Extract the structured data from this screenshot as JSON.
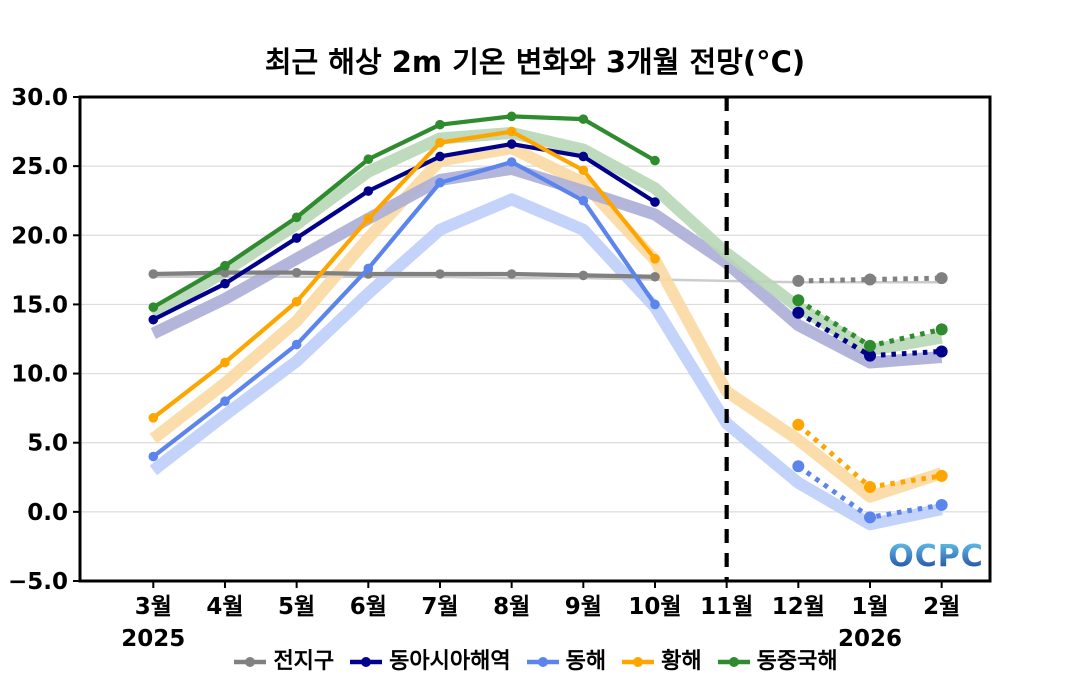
{
  "title": "최근 해상 2m 기온 변화와 3개월 전망(°C)",
  "watermark": "OCPC",
  "chart_data": {
    "type": "line",
    "title": "최근 해상 2m 기온 변화와 3개월 전망(°C)",
    "x_categories": [
      "3월",
      "4월",
      "5월",
      "6월",
      "7월",
      "8월",
      "9월",
      "10월",
      "11월",
      "12월",
      "1월",
      "2월"
    ],
    "year_labels": [
      {
        "text": "2025",
        "month": "3월"
      },
      {
        "text": "2026",
        "month": "1월"
      }
    ],
    "ylim": [
      -5.0,
      30.0
    ],
    "yticks": [
      30,
      25,
      20,
      15,
      10,
      5,
      0,
      -5
    ],
    "ytick_labels": [
      "30.0",
      "25.0",
      "20.0",
      "15.0",
      "10.0",
      "5.0",
      "0.0",
      "−5.0"
    ],
    "grid": "horizontal",
    "legend_position": "bottom",
    "forecast_divider_at": "11월",
    "observed_months": [
      "3월",
      "4월",
      "5월",
      "6월",
      "7월",
      "8월",
      "9월",
      "10월"
    ],
    "forecast_months": [
      "12월",
      "1월",
      "2월"
    ],
    "series": [
      {
        "id": "global",
        "label": "전지구",
        "color": "#808080",
        "band_color": "#c6c6c6",
        "band_style": "thin",
        "observed": [
          17.2,
          17.3,
          17.3,
          17.2,
          17.2,
          17.2,
          17.1,
          17.0
        ],
        "forecast": [
          16.7,
          16.8,
          16.9
        ],
        "climatology": [
          17.0,
          17.0,
          17.0,
          17.0,
          17.0,
          16.9,
          16.9,
          16.8,
          16.7,
          16.6,
          16.6,
          16.6
        ]
      },
      {
        "id": "east-asia-seas",
        "label": "동아시아해역",
        "color": "#00008b",
        "band_color": "#abaed6",
        "band_style": "wide",
        "observed": [
          13.9,
          16.5,
          19.8,
          23.2,
          25.7,
          26.6,
          25.7,
          22.4
        ],
        "forecast": [
          14.4,
          11.3,
          11.6
        ],
        "climatology": [
          12.9,
          15.4,
          18.3,
          21.2,
          24.0,
          24.8,
          23.2,
          21.5,
          18.0,
          13.5,
          10.8,
          11.2
        ]
      },
      {
        "id": "east-sea",
        "label": "동해",
        "color": "#5b84ec",
        "band_color": "#bccef8",
        "band_style": "wide",
        "observed": [
          4.0,
          8.0,
          12.1,
          17.6,
          23.8,
          25.3,
          22.5,
          15.0
        ],
        "forecast": [
          3.3,
          -0.4,
          0.5
        ],
        "climatology": [
          3.0,
          7.0,
          10.9,
          15.8,
          20.4,
          22.6,
          20.4,
          14.8,
          6.4,
          2.1,
          -0.9,
          0.2
        ]
      },
      {
        "id": "yellow-sea",
        "label": "황해",
        "color": "#ffa500",
        "band_color": "#fbd9a2",
        "band_style": "wide",
        "observed": [
          6.8,
          10.8,
          15.2,
          21.2,
          26.7,
          27.5,
          24.7,
          18.3
        ],
        "forecast": [
          6.3,
          1.8,
          2.6
        ],
        "climatology": [
          5.3,
          9.3,
          13.8,
          19.8,
          25.4,
          26.3,
          23.8,
          18.2,
          8.7,
          5.2,
          1.1,
          2.8
        ]
      },
      {
        "id": "east-china-sea",
        "label": "동중국해",
        "color": "#2e8b2e",
        "band_color": "#b7d7b7",
        "band_style": "wide",
        "observed": [
          14.8,
          17.8,
          21.3,
          25.5,
          28.0,
          28.6,
          28.4,
          25.4
        ],
        "forecast": [
          15.3,
          12.0,
          13.2
        ],
        "climatology": [
          14.2,
          17.4,
          20.8,
          24.6,
          27.0,
          27.4,
          26.2,
          23.4,
          18.7,
          14.8,
          11.7,
          12.6
        ]
      }
    ],
    "watermark_colors": {
      "top": "#64c9f0",
      "bottom": "#1d3f96"
    }
  }
}
